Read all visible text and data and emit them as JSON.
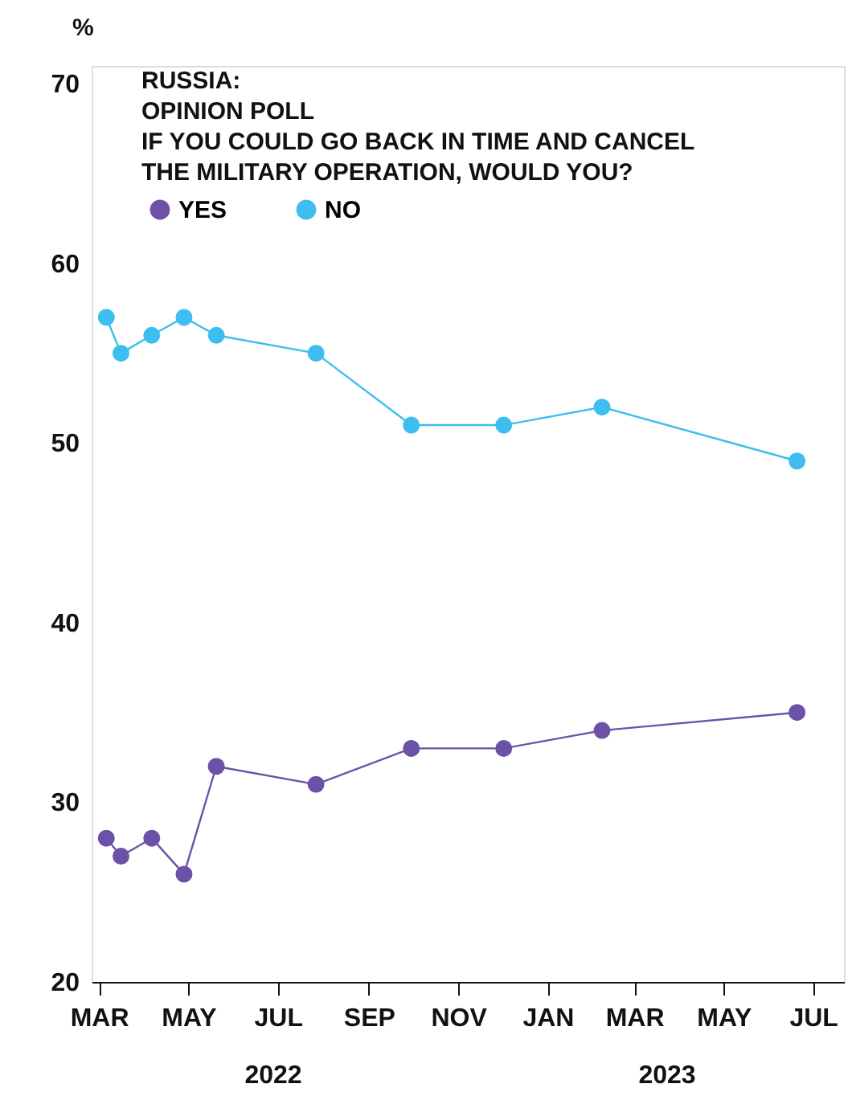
{
  "chart_data": {
    "type": "line",
    "title": "RUSSIA:\nOPINION POLL\nIF YOU COULD GO BACK IN TIME AND CANCEL\nTHE MILITARY OPERATION, WOULD YOU?",
    "ylabel": "%",
    "x": [
      "2022-03-06",
      "2022-03-16",
      "2022-04-06",
      "2022-04-28",
      "2022-05-20",
      "2022-07-27",
      "2022-09-30",
      "2022-12-02",
      "2023-02-07",
      "2023-06-20"
    ],
    "series": [
      {
        "name": "YES",
        "color": "#6b52a8",
        "values": [
          28,
          27,
          28,
          26,
          32,
          31,
          33,
          33,
          34,
          35
        ]
      },
      {
        "name": "NO",
        "color": "#3dbdf0",
        "values": [
          57,
          55,
          56,
          57,
          56,
          55,
          51,
          51,
          52,
          49
        ]
      }
    ],
    "xlim": [
      "2022-02-24",
      "2023-07-22"
    ],
    "xticks": [
      {
        "value": "2022-03-01",
        "label": "MAR"
      },
      {
        "value": "2022-05-01",
        "label": "MAY"
      },
      {
        "value": "2022-07-01",
        "label": "JUL"
      },
      {
        "value": "2022-09-01",
        "label": "SEP"
      },
      {
        "value": "2022-11-01",
        "label": "NOV"
      },
      {
        "value": "2023-01-01",
        "label": "JAN"
      },
      {
        "value": "2023-03-01",
        "label": "MAR"
      },
      {
        "value": "2023-05-01",
        "label": "MAY"
      },
      {
        "value": "2023-07-01",
        "label": "JUL"
      }
    ],
    "ylim": [
      20,
      71
    ],
    "yticks": [
      20,
      30,
      40,
      50,
      60,
      70
    ],
    "annotations": [
      "2022",
      "2023"
    ],
    "marker": "circle",
    "line_style": "solid",
    "legend": "top left",
    "grid": false
  }
}
